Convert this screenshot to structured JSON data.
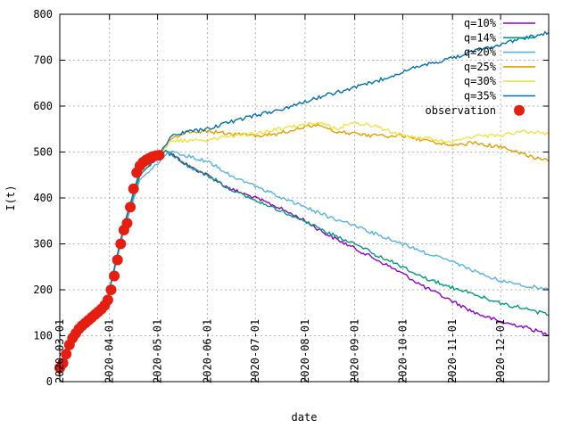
{
  "chart_data": {
    "type": "line",
    "xlabel": "date",
    "ylabel": "I(t)",
    "ylim": [
      0,
      800
    ],
    "xlim": [
      "2020-03-01",
      "2020-12-31"
    ],
    "grid": true,
    "legend_position": "top-right",
    "yticks": [
      0,
      100,
      200,
      300,
      400,
      500,
      600,
      700,
      800
    ],
    "xticks": [
      "2020-03-01",
      "2020-04-01",
      "2020-05-01",
      "2020-06-01",
      "2020-07-01",
      "2020-08-01",
      "2020-09-01",
      "2020-10-01",
      "2020-11-01",
      "2020-12-01"
    ],
    "series": [
      {
        "name": "q=10%",
        "color": "#9400d3",
        "points": [
          [
            "2020-03-01",
            30
          ],
          [
            "2020-03-10",
            110
          ],
          [
            "2020-03-20",
            140
          ],
          [
            "2020-03-31",
            185
          ],
          [
            "2020-04-10",
            330
          ],
          [
            "2020-04-20",
            450
          ],
          [
            "2020-05-01",
            490
          ],
          [
            "2020-05-06",
            505
          ],
          [
            "2020-05-12",
            490
          ],
          [
            "2020-05-20",
            470
          ],
          [
            "2020-06-01",
            450
          ],
          [
            "2020-06-15",
            420
          ],
          [
            "2020-07-01",
            400
          ],
          [
            "2020-07-15",
            380
          ],
          [
            "2020-08-01",
            350
          ],
          [
            "2020-08-15",
            320
          ],
          [
            "2020-09-01",
            290
          ],
          [
            "2020-09-15",
            265
          ],
          [
            "2020-10-01",
            235
          ],
          [
            "2020-10-15",
            205
          ],
          [
            "2020-11-01",
            175
          ],
          [
            "2020-11-15",
            150
          ],
          [
            "2020-12-01",
            130
          ],
          [
            "2020-12-15",
            120
          ],
          [
            "2020-12-31",
            102
          ]
        ]
      },
      {
        "name": "q=14%",
        "color": "#009e73",
        "points": [
          [
            "2020-03-01",
            30
          ],
          [
            "2020-03-10",
            110
          ],
          [
            "2020-03-20",
            140
          ],
          [
            "2020-03-31",
            185
          ],
          [
            "2020-04-10",
            330
          ],
          [
            "2020-04-20",
            450
          ],
          [
            "2020-05-01",
            490
          ],
          [
            "2020-05-06",
            500
          ],
          [
            "2020-05-12",
            490
          ],
          [
            "2020-05-20",
            470
          ],
          [
            "2020-06-01",
            450
          ],
          [
            "2020-06-15",
            420
          ],
          [
            "2020-07-01",
            395
          ],
          [
            "2020-07-15",
            375
          ],
          [
            "2020-08-01",
            350
          ],
          [
            "2020-08-15",
            325
          ],
          [
            "2020-09-01",
            300
          ],
          [
            "2020-09-15",
            275
          ],
          [
            "2020-10-01",
            250
          ],
          [
            "2020-10-15",
            225
          ],
          [
            "2020-11-01",
            205
          ],
          [
            "2020-11-15",
            190
          ],
          [
            "2020-12-01",
            170
          ],
          [
            "2020-12-15",
            160
          ],
          [
            "2020-12-31",
            145
          ]
        ]
      },
      {
        "name": "q=20%",
        "color": "#56b4e9",
        "points": [
          [
            "2020-03-01",
            30
          ],
          [
            "2020-03-10",
            110
          ],
          [
            "2020-03-20",
            140
          ],
          [
            "2020-03-31",
            185
          ],
          [
            "2020-04-10",
            330
          ],
          [
            "2020-04-20",
            440
          ],
          [
            "2020-05-01",
            475
          ],
          [
            "2020-05-08",
            500
          ],
          [
            "2020-05-15",
            495
          ],
          [
            "2020-06-01",
            480
          ],
          [
            "2020-06-15",
            450
          ],
          [
            "2020-07-01",
            425
          ],
          [
            "2020-07-15",
            405
          ],
          [
            "2020-08-01",
            380
          ],
          [
            "2020-08-15",
            360
          ],
          [
            "2020-09-01",
            340
          ],
          [
            "2020-09-15",
            320
          ],
          [
            "2020-10-01",
            300
          ],
          [
            "2020-10-15",
            280
          ],
          [
            "2020-11-01",
            260
          ],
          [
            "2020-11-15",
            240
          ],
          [
            "2020-12-01",
            220
          ],
          [
            "2020-12-15",
            210
          ],
          [
            "2020-12-31",
            200
          ]
        ]
      },
      {
        "name": "q=25%",
        "color": "#e69f00",
        "points": [
          [
            "2020-03-01",
            30
          ],
          [
            "2020-03-10",
            110
          ],
          [
            "2020-03-20",
            140
          ],
          [
            "2020-03-31",
            185
          ],
          [
            "2020-04-10",
            340
          ],
          [
            "2020-04-20",
            460
          ],
          [
            "2020-05-01",
            490
          ],
          [
            "2020-05-10",
            530
          ],
          [
            "2020-05-20",
            545
          ],
          [
            "2020-06-01",
            545
          ],
          [
            "2020-06-15",
            540
          ],
          [
            "2020-07-01",
            535
          ],
          [
            "2020-07-15",
            540
          ],
          [
            "2020-08-01",
            555
          ],
          [
            "2020-08-10",
            560
          ],
          [
            "2020-08-20",
            545
          ],
          [
            "2020-09-01",
            540
          ],
          [
            "2020-09-15",
            535
          ],
          [
            "2020-10-01",
            535
          ],
          [
            "2020-10-15",
            525
          ],
          [
            "2020-11-01",
            515
          ],
          [
            "2020-11-15",
            520
          ],
          [
            "2020-12-01",
            510
          ],
          [
            "2020-12-15",
            495
          ],
          [
            "2020-12-31",
            480
          ]
        ]
      },
      {
        "name": "q=30%",
        "color": "#f0e442",
        "points": [
          [
            "2020-03-01",
            30
          ],
          [
            "2020-03-10",
            110
          ],
          [
            "2020-03-20",
            140
          ],
          [
            "2020-03-31",
            185
          ],
          [
            "2020-04-10",
            340
          ],
          [
            "2020-04-20",
            460
          ],
          [
            "2020-05-01",
            495
          ],
          [
            "2020-05-10",
            525
          ],
          [
            "2020-05-20",
            525
          ],
          [
            "2020-06-01",
            525
          ],
          [
            "2020-06-15",
            535
          ],
          [
            "2020-07-01",
            540
          ],
          [
            "2020-07-15",
            550
          ],
          [
            "2020-08-01",
            560
          ],
          [
            "2020-08-10",
            565
          ],
          [
            "2020-08-20",
            550
          ],
          [
            "2020-09-01",
            565
          ],
          [
            "2020-09-15",
            555
          ],
          [
            "2020-10-01",
            535
          ],
          [
            "2020-10-15",
            530
          ],
          [
            "2020-11-01",
            520
          ],
          [
            "2020-11-15",
            535
          ],
          [
            "2020-12-01",
            535
          ],
          [
            "2020-12-15",
            545
          ],
          [
            "2020-12-31",
            540
          ]
        ]
      },
      {
        "name": "q=35%",
        "color": "#0072b2",
        "points": [
          [
            "2020-03-01",
            30
          ],
          [
            "2020-03-10",
            110
          ],
          [
            "2020-03-20",
            140
          ],
          [
            "2020-03-31",
            185
          ],
          [
            "2020-04-10",
            340
          ],
          [
            "2020-04-20",
            460
          ],
          [
            "2020-05-01",
            495
          ],
          [
            "2020-05-10",
            535
          ],
          [
            "2020-05-20",
            545
          ],
          [
            "2020-06-01",
            550
          ],
          [
            "2020-06-15",
            565
          ],
          [
            "2020-07-01",
            580
          ],
          [
            "2020-07-15",
            590
          ],
          [
            "2020-08-01",
            610
          ],
          [
            "2020-08-15",
            625
          ],
          [
            "2020-09-01",
            640
          ],
          [
            "2020-09-15",
            655
          ],
          [
            "2020-10-01",
            675
          ],
          [
            "2020-10-15",
            690
          ],
          [
            "2020-11-01",
            705
          ],
          [
            "2020-11-15",
            720
          ],
          [
            "2020-12-01",
            735
          ],
          [
            "2020-12-15",
            748
          ],
          [
            "2020-12-31",
            760
          ]
        ]
      }
    ],
    "observation": {
      "name": "observation",
      "color": "#e51e10",
      "points": [
        [
          "2020-03-01",
          30
        ],
        [
          "2020-03-03",
          40
        ],
        [
          "2020-03-05",
          60
        ],
        [
          "2020-03-07",
          80
        ],
        [
          "2020-03-09",
          95
        ],
        [
          "2020-03-11",
          105
        ],
        [
          "2020-03-13",
          115
        ],
        [
          "2020-03-15",
          122
        ],
        [
          "2020-03-17",
          128
        ],
        [
          "2020-03-19",
          134
        ],
        [
          "2020-03-21",
          140
        ],
        [
          "2020-03-23",
          146
        ],
        [
          "2020-03-25",
          152
        ],
        [
          "2020-03-27",
          158
        ],
        [
          "2020-03-29",
          166
        ],
        [
          "2020-03-31",
          178
        ],
        [
          "2020-04-02",
          200
        ],
        [
          "2020-04-04",
          230
        ],
        [
          "2020-04-06",
          265
        ],
        [
          "2020-04-08",
          300
        ],
        [
          "2020-04-10",
          330
        ],
        [
          "2020-04-12",
          345
        ],
        [
          "2020-04-14",
          380
        ],
        [
          "2020-04-16",
          420
        ],
        [
          "2020-04-18",
          455
        ],
        [
          "2020-04-20",
          470
        ],
        [
          "2020-04-22",
          478
        ],
        [
          "2020-04-24",
          483
        ],
        [
          "2020-04-26",
          487
        ],
        [
          "2020-04-28",
          490
        ],
        [
          "2020-04-30",
          492
        ],
        [
          "2020-05-02",
          493
        ]
      ]
    }
  }
}
